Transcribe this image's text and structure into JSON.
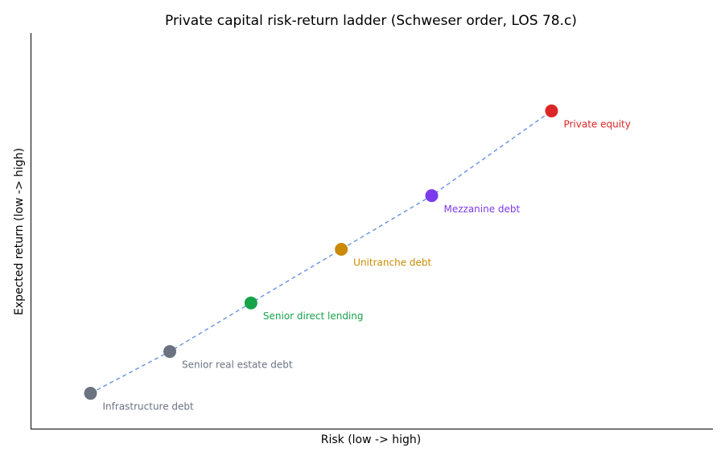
{
  "chart_data": {
    "type": "scatter",
    "title": "Private capital risk-return ladder (Schweser order, LOS 78.c)",
    "x_label": "Risk (low -> high)",
    "y_label": "Expected return (low -> high)",
    "labels": [
      "Infrastructure debt",
      "Senior real estate debt",
      "Senior direct lending",
      "Unitranche debt",
      "Mezzanine debt",
      "Private equity"
    ],
    "x": [
      1,
      1.86,
      2.74,
      3.72,
      4.7,
      6
    ],
    "values": [
      1,
      1.74,
      2.6,
      3.55,
      4.5,
      6
    ],
    "colors": [
      "#6b7280",
      "#6b7280",
      "#16a34a",
      "#ca8a04",
      "#7c3aed",
      "#dc2626"
    ],
    "line_color": "#6f97e8",
    "xlim": [
      0.35,
      7.75
    ],
    "ylim": [
      0.36,
      7.38
    ]
  }
}
